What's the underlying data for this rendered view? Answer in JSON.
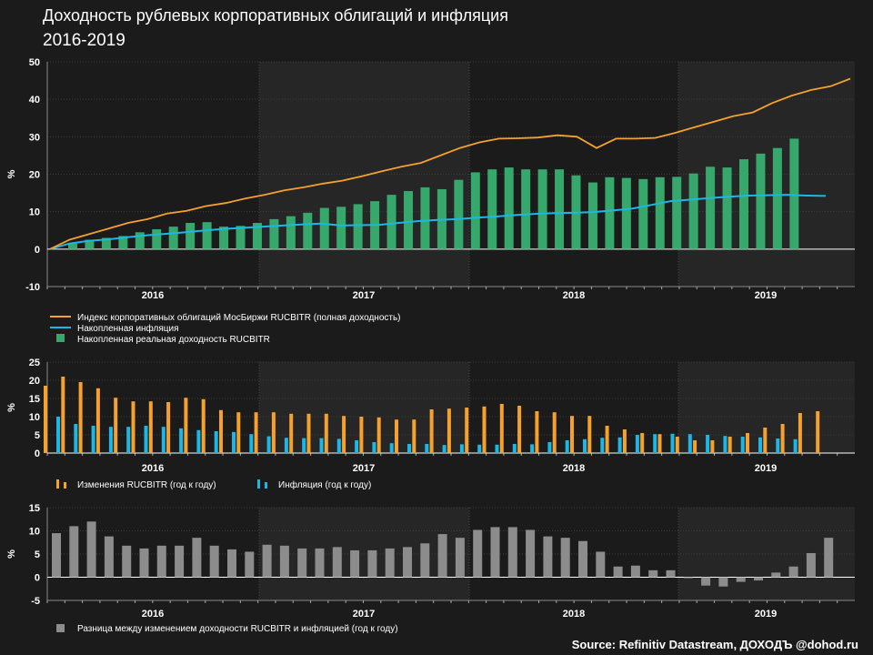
{
  "header": {
    "title": "Доходность рублевых корпоративных облигаций и инфляция",
    "subtitle": "2016-2019"
  },
  "source": "Source: Refinitiv Datastream, ДОХОДЪ @dohod.ru",
  "colors": {
    "background": "#1b1b1b",
    "shade": "#262626",
    "orange": "#f5a12c",
    "cyan": "#1ab8e6",
    "green": "#37a86c",
    "gray": "#8c8c8c"
  },
  "chart_data": [
    {
      "type": "line+bar",
      "ylabel": "%",
      "ylim": [
        -10,
        50
      ],
      "yticks": [
        "50",
        "40",
        "30",
        "20",
        "10",
        "0",
        "-10"
      ],
      "years": [
        "2016",
        "2017",
        "2018",
        "2019"
      ],
      "legend": [
        "Индекс корпоративных облигаций МосБиржи RUCBITR (полная доходность)",
        "Накопленная инфляция",
        "Накопленная реальная доходность RUCBITR"
      ],
      "series": [
        {
          "name": "Индекс корпоративных облигаций МосБиржи RUCBITR (полная доходность)",
          "type": "line",
          "values": [
            0,
            2.5,
            4,
            5.5,
            7,
            8,
            9.5,
            10.2,
            11.5,
            12.3,
            13.5,
            14.5,
            15.7,
            16.5,
            17.5,
            18.3,
            19.5,
            20.8,
            22,
            23,
            25,
            27,
            28.5,
            29.5,
            29.6,
            29.8,
            30.4,
            30,
            27,
            29.5,
            29.5,
            29.7,
            31,
            32.5,
            34,
            35.5,
            36.5,
            39,
            41,
            42.5,
            43.5,
            45.5
          ]
        },
        {
          "name": "Накопленная инфляция",
          "type": "line",
          "values": [
            0,
            1.5,
            2.2,
            2.6,
            3.2,
            3.7,
            4.1,
            4.5,
            5,
            5.4,
            5.7,
            6,
            6.3,
            6.6,
            6.8,
            6.3,
            6.4,
            6.5,
            7,
            7.5,
            7.8,
            8,
            8.4,
            8.7,
            9.1,
            9.4,
            9.6,
            9.7,
            9.9,
            10.3,
            10.8,
            11.8,
            12.8,
            13.2,
            13.6,
            14,
            14.3,
            14.4,
            14.5,
            14.3,
            14.2
          ]
        },
        {
          "name": "Накопленная реальная доходность RUCBITR",
          "type": "bar",
          "values": [
            1.5,
            2.5,
            3,
            3.5,
            4.5,
            5.3,
            6,
            7,
            7.2,
            6,
            6.2,
            7,
            8,
            8.8,
            9.7,
            11,
            11.3,
            12,
            12.8,
            14.5,
            15.5,
            16.5,
            16,
            18.5,
            20.5,
            21.3,
            21.8,
            21.3,
            21.3,
            21.3,
            19.7,
            17.8,
            19.2,
            19,
            18.7,
            19.2,
            19.3,
            20.2,
            22,
            21.8,
            24,
            25.5,
            27,
            29.5
          ]
        }
      ]
    },
    {
      "type": "bar",
      "ylabel": "%",
      "ylim": [
        0,
        25
      ],
      "yticks": [
        "25",
        "20",
        "15",
        "10",
        "5",
        "0"
      ],
      "years": [
        "2016",
        "2017",
        "2018",
        "2019"
      ],
      "legend": [
        "Изменения RUCBITR (год к году)",
        "Инфляция (год к году)"
      ],
      "series": [
        {
          "name": "Изменения RUCBITR (год к году)",
          "values": [
            18.5,
            21,
            19.5,
            17.8,
            15.2,
            14.2,
            14.2,
            14,
            15.2,
            14.8,
            11.8,
            11.2,
            11.2,
            11.2,
            10.8,
            10.8,
            10.8,
            10.2,
            10,
            9.8,
            9.2,
            9.2,
            12,
            12.2,
            12.5,
            12.8,
            13.5,
            13,
            11.5,
            11.2,
            10.2,
            10.2,
            7.5,
            6.5,
            5.5,
            5.2,
            4.5,
            3.5,
            3.5,
            4.5,
            5.5,
            7,
            8,
            11,
            11.5
          ]
        },
        {
          "name": "Инфляция (год к году)",
          "values": [
            10,
            8,
            7.5,
            7.2,
            7.2,
            7.5,
            7.2,
            6.8,
            6.3,
            6,
            5.8,
            5.2,
            4.6,
            4.2,
            4.1,
            4.1,
            3.9,
            3.5,
            3,
            2.7,
            2.5,
            2.5,
            2.2,
            2.4,
            2.3,
            2.3,
            2.5,
            2.4,
            3,
            3.5,
            3.8,
            4.2,
            4.3,
            5,
            5.2,
            5.3,
            5.2,
            5,
            4.7,
            4.5,
            4.3,
            4.0,
            3.8
          ]
        }
      ]
    },
    {
      "type": "bar",
      "ylabel": "%",
      "ylim": [
        -5,
        15
      ],
      "yticks": [
        "15",
        "10",
        "5",
        "0",
        "-5"
      ],
      "years": [
        "2016",
        "2017",
        "2018",
        "2019"
      ],
      "legend": [
        "Разница между изменением доходности RUCBITR и инфляцией (год к году)"
      ],
      "series": [
        {
          "name": "Разница между изменением доходности RUCBITR и инфляцией (год к году)",
          "values": [
            9.5,
            11,
            12,
            8.8,
            6.8,
            6.2,
            6.8,
            6.8,
            8.5,
            6.8,
            6,
            5.5,
            7,
            6.8,
            6.2,
            6.2,
            6.5,
            5.8,
            5.8,
            6.2,
            6.5,
            7.3,
            9.3,
            8.5,
            10.2,
            10.8,
            10.8,
            10.2,
            8.8,
            8.5,
            7.8,
            5.5,
            2.3,
            2.5,
            1.5,
            1.5,
            -0.2,
            -1.8,
            -2.0,
            -1.0,
            -0.7,
            1.0,
            2.3,
            5.2,
            8.5
          ]
        }
      ]
    }
  ]
}
